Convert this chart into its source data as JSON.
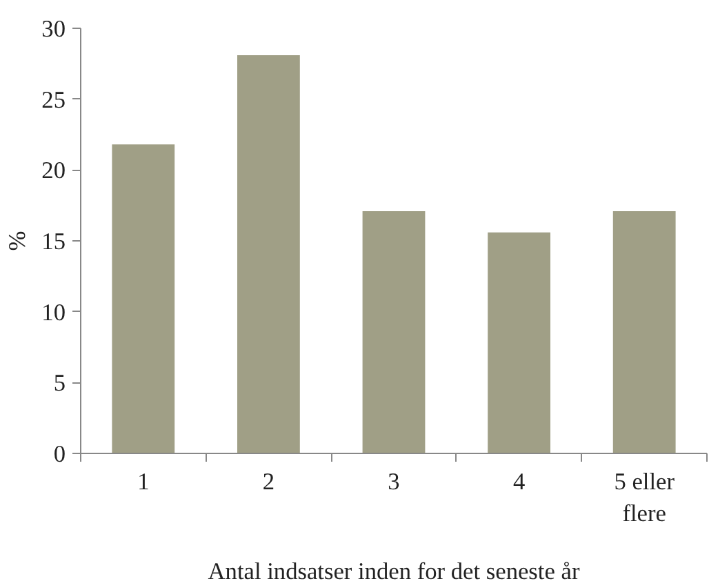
{
  "chart_data": {
    "type": "bar",
    "xlabel": "Antal indsatser inden for det seneste år",
    "ylabel": "%",
    "categories": [
      "1",
      "2",
      "3",
      "4",
      "5 eller flere"
    ],
    "values": [
      21.8,
      28.1,
      17.1,
      15.6,
      17.1
    ],
    "color": "#a09f86",
    "ylim": [
      0,
      30
    ],
    "yticks": [
      0,
      5,
      10,
      15,
      20,
      25,
      30
    ],
    "grid": false
  }
}
